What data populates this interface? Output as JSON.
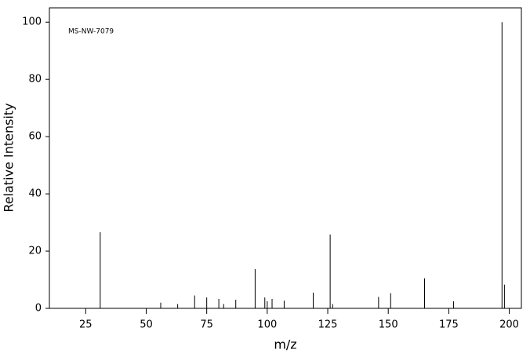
{
  "chart_data": {
    "type": "bar",
    "annotation": "MS-NW-7079",
    "xlabel": "m/z",
    "ylabel": "Relative Intensity",
    "x": [
      31,
      56,
      63,
      70,
      75,
      80,
      82,
      87,
      95,
      99,
      100,
      102,
      107,
      119,
      126,
      127,
      146,
      151,
      165,
      177,
      197,
      198
    ],
    "values": [
      26.6,
      2,
      1.5,
      4.5,
      3.8,
      3.3,
      1.5,
      3,
      13.7,
      3.8,
      2.5,
      3.3,
      2.7,
      5.5,
      25.8,
      1.5,
      4,
      5.3,
      10.5,
      2.5,
      100,
      8.3
    ],
    "color": "#000000",
    "xlim": [
      10,
      205
    ],
    "xticks": [
      25,
      50,
      75,
      100,
      125,
      150,
      175,
      200
    ],
    "ylim": [
      0,
      105
    ],
    "yticks": [
      0,
      20,
      40,
      60,
      80,
      100
    ]
  }
}
